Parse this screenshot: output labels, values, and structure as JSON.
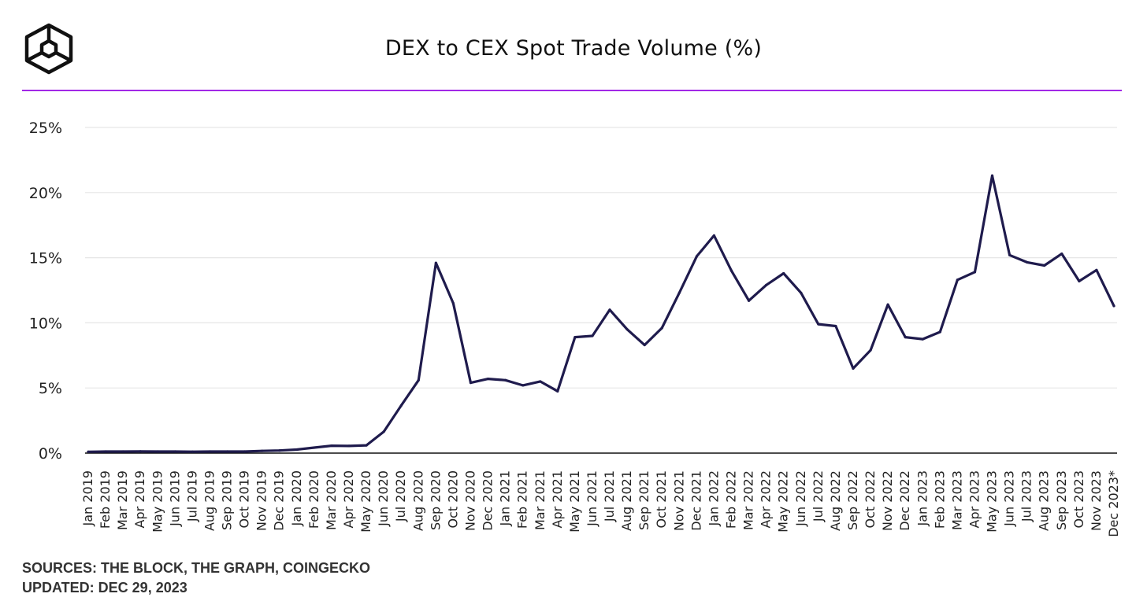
{
  "header": {
    "title": "DEX to CEX Spot Trade Volume (%)",
    "logo_icon": "the-block-cube-logo-icon"
  },
  "footer": {
    "sources": "SOURCES: THE BLOCK, THE GRAPH, COINGECKO",
    "updated": "UPDATED: DEC 29, 2023"
  },
  "colors": {
    "line": "#1f1b4d",
    "accent_rule": "#a229e6",
    "grid": "#e6e6e6",
    "axis": "#111111"
  },
  "chart_data": {
    "type": "line",
    "title": "DEX to CEX Spot Trade Volume (%)",
    "xlabel": "",
    "ylabel": "",
    "ylim": [
      0,
      25
    ],
    "yticks": [
      "0%",
      "5%",
      "10%",
      "15%",
      "20%",
      "25%"
    ],
    "grid": true,
    "legend": "none",
    "categories": [
      "Jan 2019",
      "Feb 2019",
      "Mar 2019",
      "Apr 2019",
      "May 2019",
      "Jun 2019",
      "Jul 2019",
      "Aug 2019",
      "Sep 2019",
      "Oct 2019",
      "Nov 2019",
      "Dec 2019",
      "Jan 2020",
      "Feb 2020",
      "Mar 2020",
      "Apr 2020",
      "May 2020",
      "Jun 2020",
      "Jul 2020",
      "Aug 2020",
      "Sep 2020",
      "Oct 2020",
      "Nov 2020",
      "Dec 2020",
      "Jan 2021",
      "Feb 2021",
      "Mar 2021",
      "Apr 2021",
      "May 2021",
      "Jun 2021",
      "Jul 2021",
      "Aug 2021",
      "Sep 2021",
      "Oct 2021",
      "Nov 2021",
      "Dec 2021",
      "Jan 2022",
      "Feb 2022",
      "Mar 2022",
      "Apr 2022",
      "May 2022",
      "Jun 2022",
      "Jul 2022",
      "Aug 2022",
      "Sep 2022",
      "Oct 2022",
      "Nov 2022",
      "Dec 2022",
      "Jan 2023",
      "Feb 2023",
      "Mar 2023",
      "Apr 2023",
      "May 2023",
      "Jun 2023",
      "Jul 2023",
      "Aug 2023",
      "Sep 2023",
      "Oct 2023",
      "Nov 2023",
      "Dec 2023*"
    ],
    "series": [
      {
        "values": [
          0.1,
          0.12,
          0.12,
          0.13,
          0.12,
          0.12,
          0.11,
          0.12,
          0.12,
          0.12,
          0.17,
          0.2,
          0.27,
          0.42,
          0.57,
          0.55,
          0.6,
          1.65,
          3.65,
          5.6,
          14.6,
          11.5,
          5.4,
          5.7,
          5.6,
          5.2,
          5.5,
          4.75,
          8.9,
          9.0,
          11.0,
          9.5,
          8.3,
          9.6,
          12.3,
          15.1,
          16.7,
          14.0,
          11.7,
          12.9,
          13.8,
          12.3,
          9.9,
          9.75,
          6.5,
          7.9,
          11.4,
          8.9,
          8.75,
          9.3,
          13.3,
          13.9,
          21.3,
          15.2,
          14.65,
          14.4,
          15.3,
          13.2,
          14.05,
          11.3
        ]
      }
    ]
  }
}
